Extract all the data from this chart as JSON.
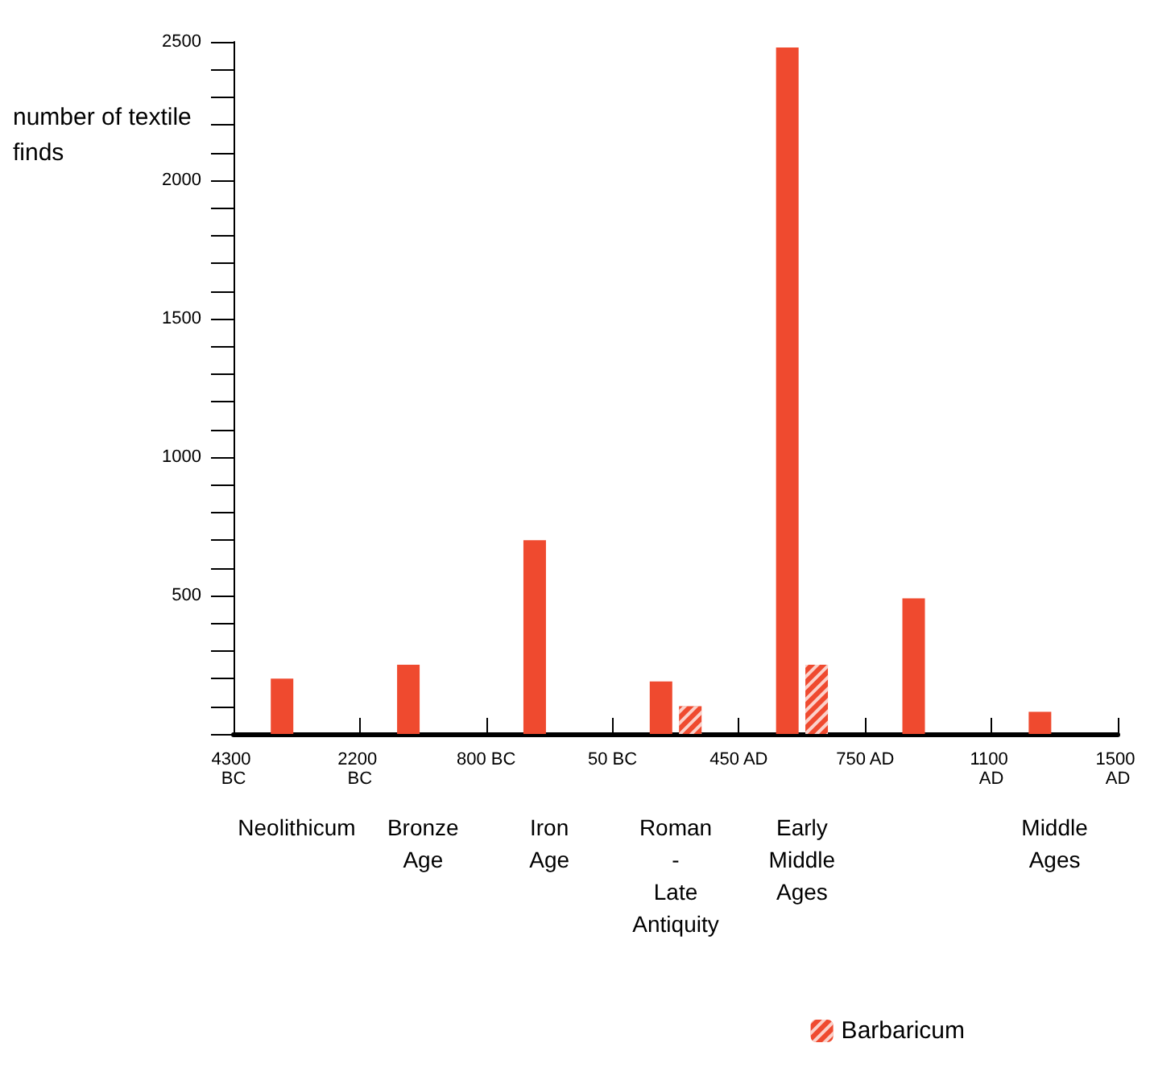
{
  "chart_data": {
    "type": "bar",
    "ylabel": "number of textile finds",
    "categories": [
      "Neolithicum",
      "Bronze Age",
      "Iron Age",
      "Roman - Late Antiquity",
      "Early Middle Ages",
      null,
      "Middle Ages"
    ],
    "series": [
      {
        "color": "#ef4a2f",
        "values": [
          200,
          250,
          700,
          190,
          2480,
          490,
          80
        ]
      },
      {
        "name": "Barbaricum",
        "color": "#ef4a2f",
        "values": [
          null,
          null,
          null,
          100,
          250,
          null,
          null
        ]
      }
    ],
    "ylim": [
      0,
      2500
    ],
    "yticks": [
      {
        "value": 0,
        "label": null
      },
      {
        "value": 100,
        "label": null
      },
      {
        "value": 200,
        "label": null
      },
      {
        "value": 300,
        "label": null
      },
      {
        "value": 400,
        "label": null
      },
      500,
      {
        "value": 600,
        "label": null
      },
      {
        "value": 700,
        "label": null
      },
      {
        "value": 800,
        "label": null
      },
      {
        "value": 900,
        "label": null
      },
      1000,
      {
        "value": 1100,
        "label": null
      },
      {
        "value": 1200,
        "label": null
      },
      {
        "value": 1300,
        "label": null
      },
      {
        "value": 1400,
        "label": null
      },
      1500,
      {
        "value": 1600,
        "label": null
      },
      {
        "value": 1700,
        "label": null
      },
      {
        "value": 1800,
        "label": null
      },
      {
        "value": 1900,
        "label": null
      },
      2000,
      {
        "value": 2100,
        "label": null
      },
      {
        "value": 2200,
        "label": null
      },
      {
        "value": 2300,
        "label": null
      },
      {
        "value": 2400,
        "label": null
      },
      2500
    ],
    "annotations": [
      "4300 BC",
      "2200 BC",
      "800 BC",
      "50 BC",
      "450 AD",
      "750 AD",
      "1100 AD",
      "1500 AD"
    ],
    "grid": false,
    "legend": "bottom right"
  }
}
